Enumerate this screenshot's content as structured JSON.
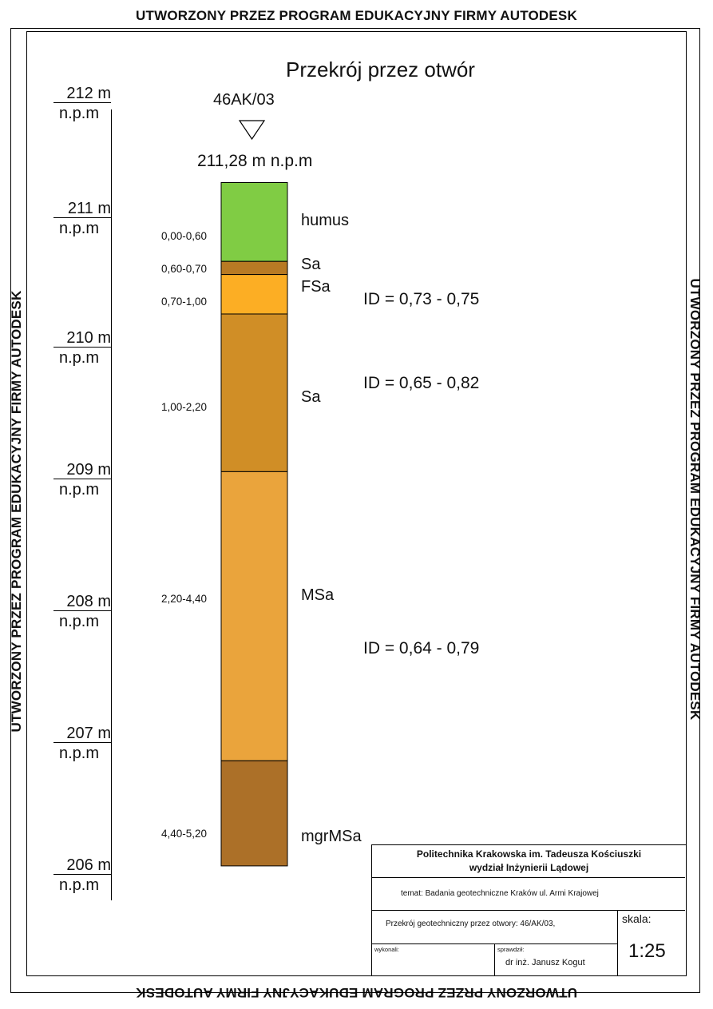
{
  "watermark": "UTWORZONY PRZEZ PROGRAM EDUKACYJNY FIRMY AUTODESK",
  "title": "Przekrój przez otwór",
  "borehole": {
    "name": "46AK/03",
    "elevation_label": "211,28 m n.p.m"
  },
  "elevation_axis": [
    {
      "m": "212 m",
      "unit": "n.p.m"
    },
    {
      "m": "211 m",
      "unit": "n.p.m"
    },
    {
      "m": "210 m",
      "unit": "n.p.m"
    },
    {
      "m": "209 m",
      "unit": "n.p.m"
    },
    {
      "m": "208 m",
      "unit": "n.p.m"
    },
    {
      "m": "207 m",
      "unit": "n.p.m"
    },
    {
      "m": "206 m",
      "unit": "n.p.m"
    }
  ],
  "layers": [
    {
      "depth": "0,00-0,60",
      "name": "humus",
      "color": "#80cc44",
      "top": 0.0,
      "bottom": 0.6
    },
    {
      "depth": "0,60-0,70",
      "name": "Sa",
      "color": "#b87a24",
      "top": 0.6,
      "bottom": 0.7
    },
    {
      "depth": "0,70-1,00",
      "name": "FSa",
      "color": "#fcae24",
      "top": 0.7,
      "bottom": 1.0
    },
    {
      "depth": "1,00-2,20",
      "name": "Sa",
      "color": "#d08e26",
      "top": 1.0,
      "bottom": 2.2
    },
    {
      "depth": "2,20-4,40",
      "name": "MSa",
      "color": "#eaa43c",
      "top": 2.2,
      "bottom": 4.4
    },
    {
      "depth": "4,40-5,20",
      "name": "mgrMSa",
      "color": "#ac7028",
      "top": 4.4,
      "bottom": 5.2
    }
  ],
  "id_values": [
    "ID = 0,73 - 0,75",
    "ID = 0,65 - 0,82",
    "ID = 0,64 - 0,79"
  ],
  "title_block": {
    "institution_line1": "Politechnika Krakowska  im. Tadeusza Kościuszki",
    "institution_line2": "wydział Inżynierii Lądowej",
    "topic": "temat: Badania geotechniczne Kraków ul. Armi Krajowej",
    "drawing": "Przekrój geotechniczny przez otwory: 46/AK/03,",
    "scale_label": "skala:",
    "scale_value": "1:25",
    "made_by_label": "wykonali:",
    "checked_by_label": "sprawdził:",
    "checked_by": "dr inż. Janusz Kogut"
  }
}
